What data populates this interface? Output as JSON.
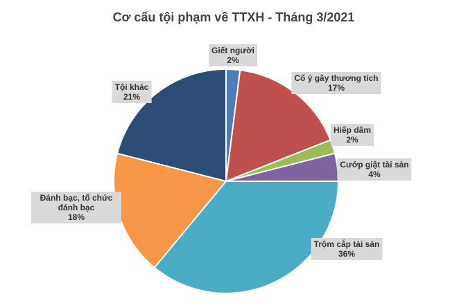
{
  "chart_data": {
    "type": "pie",
    "title": "Cơ cấu tội phạm về TTXH - Tháng 3/2021",
    "categories": [
      "Giết người",
      "Cố ý gây thương tích",
      "Hiếp dâm",
      "Cướp giật tài sản",
      "Trộm cắp tài sản",
      "Đánh bạc, tổ chức đánh bạc",
      "Tội khác"
    ],
    "values": [
      2,
      17,
      2,
      4,
      36,
      18,
      21
    ],
    "value_labels": [
      "2%",
      "17%",
      "2%",
      "4%",
      "36%",
      "18%",
      "21%"
    ],
    "colors": [
      "#4a7ebb",
      "#c0504d",
      "#9bbb59",
      "#8064a2",
      "#4bacc6",
      "#f79646",
      "#2c4d75"
    ]
  }
}
